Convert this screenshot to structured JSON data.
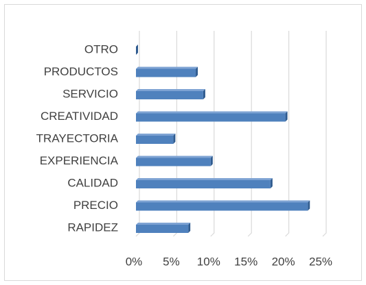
{
  "chart_data": {
    "type": "bar",
    "orientation": "horizontal",
    "categories": [
      "OTRO",
      "PRODUCTOS",
      "SERVICIO",
      "CREATIVIDAD",
      "TRAYECTORIA",
      "EXPERIENCIA",
      "CALIDAD",
      "PRECIO",
      "RAPIDEZ"
    ],
    "values": [
      0,
      8,
      9,
      20,
      5,
      10,
      18,
      23,
      7
    ],
    "color": "#4f81bd",
    "xlim": [
      0,
      25
    ],
    "xticks": [
      {
        "value": 0,
        "label": "0%"
      },
      {
        "value": 5,
        "label": "5%"
      },
      {
        "value": 10,
        "label": "10%"
      },
      {
        "value": 15,
        "label": "15%"
      },
      {
        "value": 20,
        "label": "20%"
      },
      {
        "value": 25,
        "label": "25%"
      }
    ],
    "grid": true
  }
}
